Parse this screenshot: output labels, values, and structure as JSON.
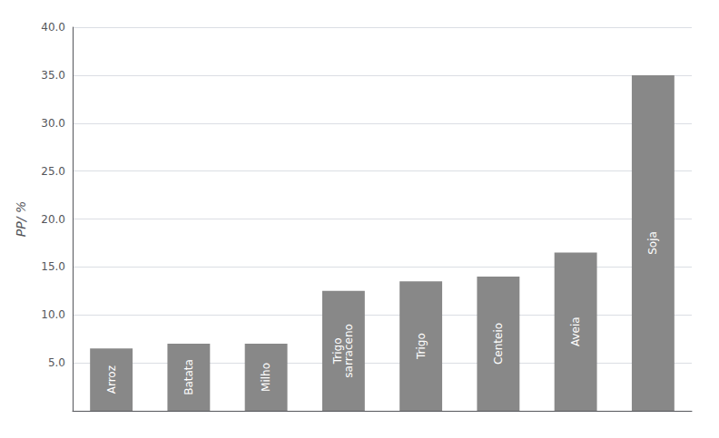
{
  "chart_data": {
    "type": "bar",
    "categories": [
      "Arroz",
      "Batata",
      "Milho",
      "Trigo\nsarraceno",
      "Trigo",
      "Centeio",
      "Aveia",
      "Soja"
    ],
    "values": [
      6.5,
      7.0,
      7.0,
      12.5,
      13.5,
      14.0,
      16.5,
      35.0
    ],
    "color": "#888888",
    "ylabel": "PP/ %",
    "ylim": [
      0,
      40
    ],
    "yticks": [
      {
        "value": 5.0,
        "label": "5.0"
      },
      {
        "value": 10.0,
        "label": "10.0"
      },
      {
        "value": 15.0,
        "label": "15.0"
      },
      {
        "value": 20.0,
        "label": "20.0"
      },
      {
        "value": 25.0,
        "label": "25.0"
      },
      {
        "value": 30.0,
        "label": "30.0"
      },
      {
        "value": 35.0,
        "label": "35.0"
      },
      {
        "value": 40.0,
        "label": "40.0"
      }
    ],
    "grid": true,
    "tick_labels": "y"
  }
}
